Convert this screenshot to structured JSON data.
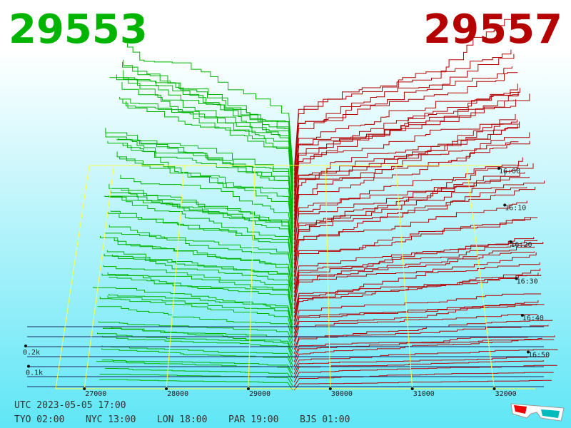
{
  "header": {
    "bid": "29553",
    "ask": "29557"
  },
  "chart_data": {
    "type": "depth3d",
    "xticks": [
      27000,
      28000,
      29000,
      30000,
      31000,
      32000
    ],
    "xlim": [
      26650,
      32500
    ],
    "zticks": [
      {
        "value": 100,
        "label": "0.1k"
      },
      {
        "value": 200,
        "label": "0.2k"
      }
    ],
    "time_ticks": [
      "16:00",
      "16:10",
      "16:20",
      "16:30",
      "16:40",
      "16:50"
    ],
    "bid_color": "#00b400",
    "ask_color": "#b40000"
  },
  "footer": {
    "utc": "UTC 2023-05-05 17:00",
    "clocks": [
      "TYO 02:00",
      "NYC 13:00",
      "LON 18:00",
      "PAR 19:00",
      "BJS 01:00"
    ]
  }
}
